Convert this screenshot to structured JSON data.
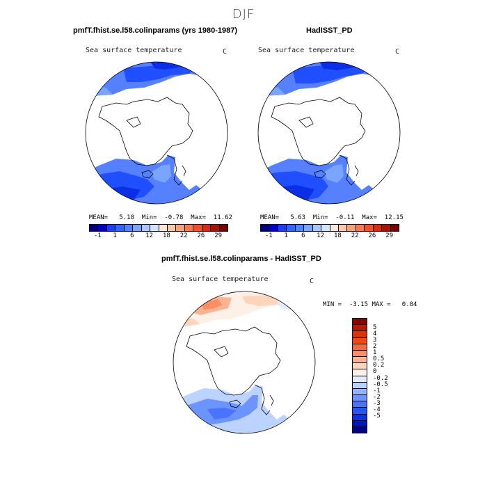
{
  "figure": {
    "title": "DJF"
  },
  "panels": [
    {
      "title": "pmfT.fhist.se.l58.colinparams (yrs 1980-1987)",
      "variable": "Sea surface temperature",
      "unit": "C",
      "stats": "MEAN=   5.18  Min=  -0.78  Max=  11.62",
      "colors": [
        "#00007f",
        "#0000cc",
        "#1a3dff",
        "#2e66ff",
        "#4d85ff",
        "#7aa5ff",
        "#a8c6ff",
        "#d2e3ff",
        "#fde8d8",
        "#fbc9a8",
        "#f7a27a",
        "#f57a50",
        "#f0502a",
        "#d92b0f",
        "#a91203",
        "#7a0000"
      ],
      "ticks": [
        "-1",
        "1",
        "6",
        "12",
        "18",
        "22",
        "26",
        "29"
      ],
      "colormap_name": "sst"
    },
    {
      "title": "HadISST_PD",
      "variable": "Sea surface temperature",
      "unit": "C",
      "stats": "MEAN=   5.63  Min=  -0.11  Max=  12.15",
      "colors": [
        "#00007f",
        "#0000cc",
        "#1a3dff",
        "#2e66ff",
        "#4d85ff",
        "#7aa5ff",
        "#a8c6ff",
        "#d2e3ff",
        "#fde8d8",
        "#fbc9a8",
        "#f7a27a",
        "#f57a50",
        "#f0502a",
        "#d92b0f",
        "#a91203",
        "#7a0000"
      ],
      "ticks": [
        "-1",
        "1",
        "6",
        "12",
        "18",
        "22",
        "26",
        "29"
      ]
    },
    {
      "title": "pmfT.fhist.se.l58.colinparams - HadISST_PD",
      "variable": "Sea surface temperature",
      "unit": "C",
      "stats": "MIN =  -3.15 MAX =   0.84",
      "colors": [
        "#8b0000",
        "#b51a00",
        "#dd3300",
        "#f04a10",
        "#f56a3a",
        "#f88f66",
        "#fbb48f",
        "#fdd5bb",
        "#fdf0e6",
        "#e2ecff",
        "#bcd3ff",
        "#93b4ff",
        "#6c94ff",
        "#4a74ff",
        "#2a55f5",
        "#0a33e0",
        "#0017b8",
        "#00008b"
      ],
      "ticks": [
        "5",
        "4",
        "3",
        "2",
        "1",
        "0.5",
        "0.2",
        "0",
        "-0.2",
        "-0.5",
        "-1",
        "-2",
        "-3",
        "-4",
        "-5"
      ]
    }
  ]
}
